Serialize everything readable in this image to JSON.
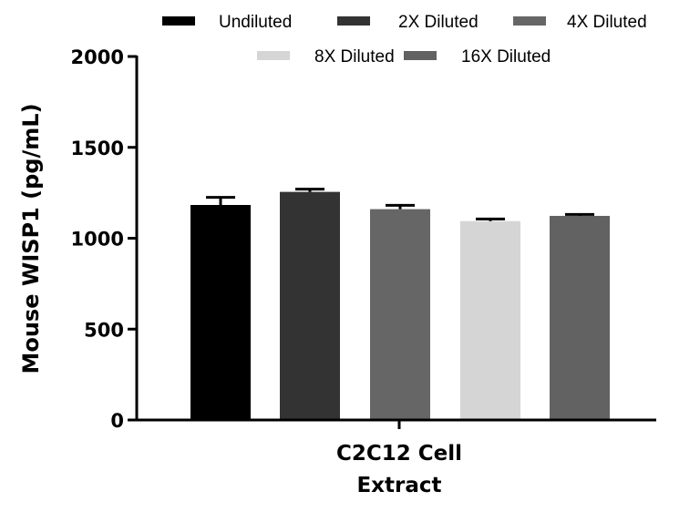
{
  "chart_data": {
    "type": "bar",
    "title": "",
    "xlabel": "",
    "ylabel": "Mouse WISP1 (pg/mL)",
    "ylim": [
      0,
      2000
    ],
    "yticks": [
      0,
      500,
      1000,
      1500,
      2000
    ],
    "categories": [
      "C2C12 Cell Extract"
    ],
    "category_lines": [
      "C2C12 Cell",
      "Extract"
    ],
    "legend_position": "top",
    "grid": false,
    "series": [
      {
        "name": "Undiluted",
        "values": [
          1183
        ],
        "error": [
          42
        ],
        "color": "#000000"
      },
      {
        "name": "2X Diluted",
        "values": [
          1255
        ],
        "error": [
          15
        ],
        "color": "#333333"
      },
      {
        "name": "4X Diluted",
        "values": [
          1160
        ],
        "error": [
          21
        ],
        "color": "#666666"
      },
      {
        "name": "8X Diluted",
        "values": [
          1094
        ],
        "error": [
          12
        ],
        "color": "#d5d5d5"
      },
      {
        "name": "16X Diluted",
        "values": [
          1123
        ],
        "error": [
          8
        ],
        "color": "#626262"
      }
    ]
  }
}
